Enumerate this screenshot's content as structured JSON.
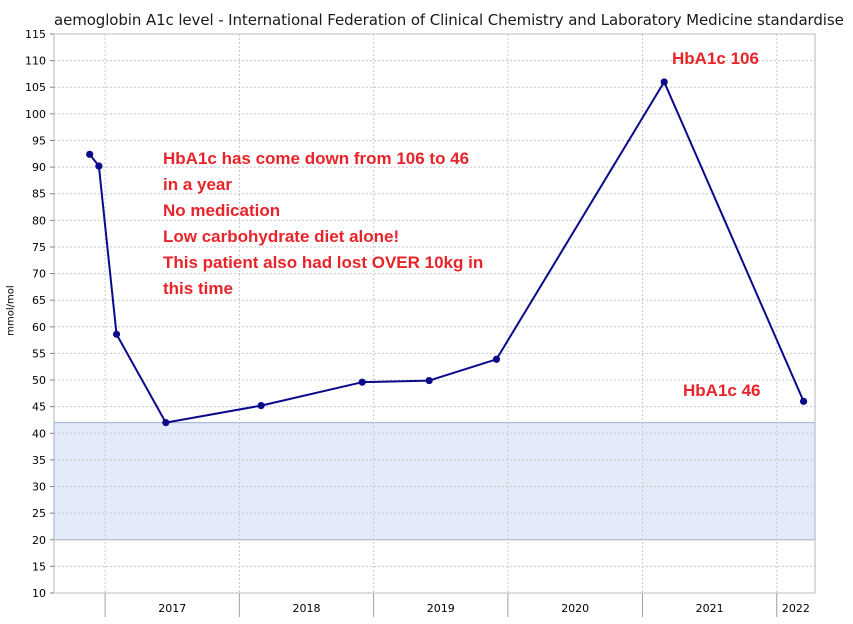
{
  "chart_data": {
    "type": "line",
    "title": "aemoglobin A1c level - International Federation of Clinical Chemistry and Laboratory Medicine standardise",
    "ylabel": "mmol/mol",
    "xlabel": "",
    "ylim": [
      10,
      115
    ],
    "y_ticks": [
      10,
      15,
      20,
      25,
      30,
      35,
      40,
      45,
      50,
      55,
      60,
      65,
      70,
      75,
      80,
      85,
      90,
      95,
      100,
      105,
      110,
      115
    ],
    "x_ticks": [
      "2017",
      "2018",
      "2019",
      "2020",
      "2021",
      "2022"
    ],
    "x_range": [
      "2016-08-15",
      "2022-04-15"
    ],
    "grid": true,
    "reference_band": [
      20,
      42
    ],
    "series": [
      {
        "x": [
          "2016-11-20",
          "2016-12-15",
          "2017-02-01",
          "2017-06-15",
          "2018-03-01",
          "2018-12-01",
          "2019-06-01",
          "2019-12-01",
          "2021-03-01",
          "2022-03-15"
        ],
        "values": [
          92.4,
          90.2,
          58.6,
          42.0,
          45.2,
          49.6,
          49.9,
          53.9,
          106,
          46
        ]
      }
    ],
    "annotations": [
      "HbA1c has come down from 106 to 46\nin a year\nNo medication\nLow carbohydrate diet alone!\nThis patient also had lost OVER 10kg in\nthis time",
      "HbA1c 106",
      "HbA1c 46"
    ],
    "colors": {
      "line": "#0a0a8a",
      "marker": "#0a0a8a",
      "band": "#e3ebf8",
      "annotation": "#e8242b",
      "grid": "#c8c8c8"
    }
  }
}
